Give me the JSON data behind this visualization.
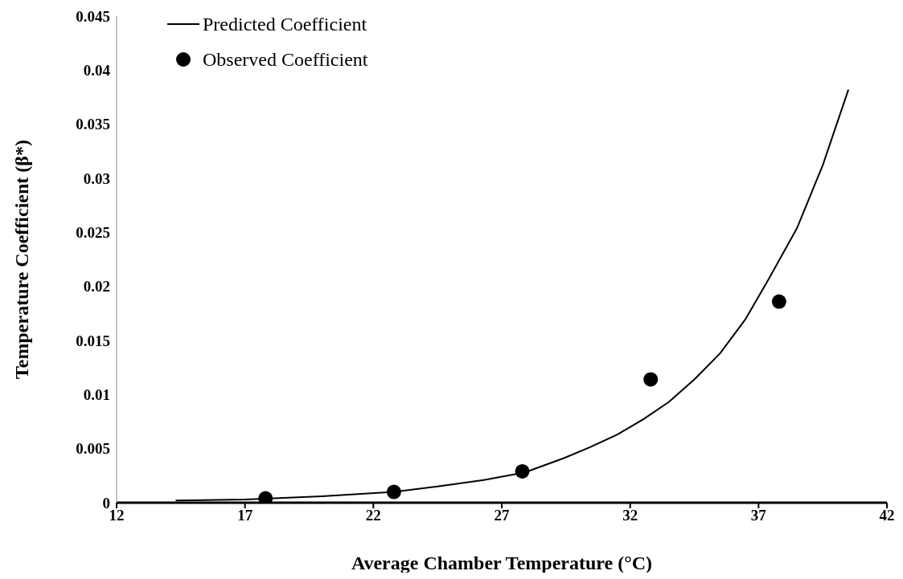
{
  "chart_data": {
    "type": "line",
    "xlabel": "Average Chamber Temperature (°C)",
    "ylabel": "Temperature Coefficient (β*)",
    "xlim": [
      12,
      42
    ],
    "xticks": [
      12,
      17,
      22,
      27,
      32,
      37,
      42
    ],
    "ylim": [
      0,
      0.045
    ],
    "yticks": [
      0,
      0.005,
      0.01,
      0.015,
      0.02,
      0.025,
      0.03,
      0.035,
      0.04,
      0.045
    ],
    "grid": false,
    "legend": "top left",
    "series": [
      {
        "name": "Predicted Coefficient",
        "color": "#000000",
        "marker": "none",
        "line_style": "solid",
        "x": [
          14.3,
          17,
          20,
          22.8,
          24.5,
          26.3,
          27.9,
          29.4,
          30.4,
          31.5,
          32.5,
          33.5,
          34.5,
          35.5,
          36.5,
          37.4,
          38.5,
          39.5,
          40.5
        ],
        "values": [
          0.0002,
          0.0003,
          0.0006,
          0.001,
          0.0015,
          0.0021,
          0.0028,
          0.0041,
          0.0051,
          0.0063,
          0.0077,
          0.0093,
          0.0114,
          0.0138,
          0.017,
          0.0207,
          0.0254,
          0.0312,
          0.0382
        ]
      },
      {
        "name": "Observed Coefficient",
        "type": "scatter",
        "color": "#000000",
        "marker": "circle",
        "x": [
          17.8,
          22.8,
          27.8,
          32.8,
          37.8
        ],
        "values": [
          0.0004,
          0.001,
          0.0029,
          0.0114,
          0.0186
        ]
      }
    ]
  }
}
